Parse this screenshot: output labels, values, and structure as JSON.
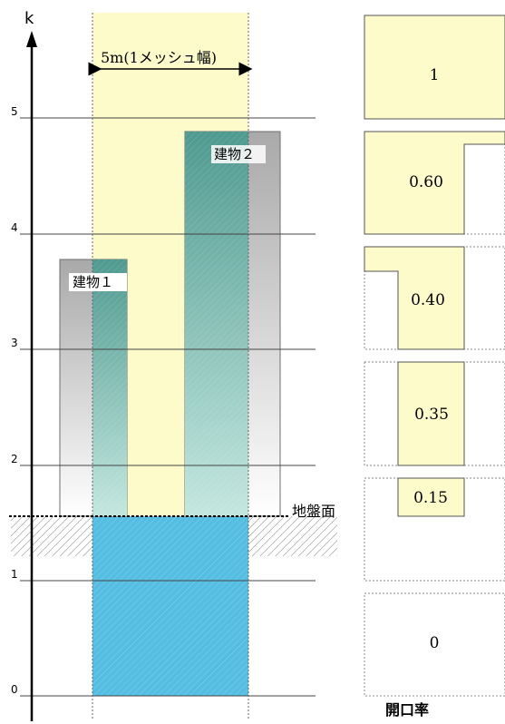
{
  "diagram": {
    "axis_label": "k",
    "k_ticks": [
      "0",
      "1",
      "2",
      "3",
      "4",
      "5"
    ],
    "mesh_width_label": "5m(1メッシュ幅)",
    "building1_label": "建物１",
    "building2_label": "建物２",
    "ground_label": "地盤面",
    "ratio_axis_label": "開口率",
    "ratios": [
      "1",
      "0.60",
      "0.40",
      "0.35",
      "0.15",
      "0"
    ],
    "colors": {
      "mesh_band": "#fdfbc9",
      "building_top": "#a8a8a8",
      "building_teal": "#4f9a90",
      "underground_blue": "#53bde2",
      "gridline": "#444444"
    }
  }
}
